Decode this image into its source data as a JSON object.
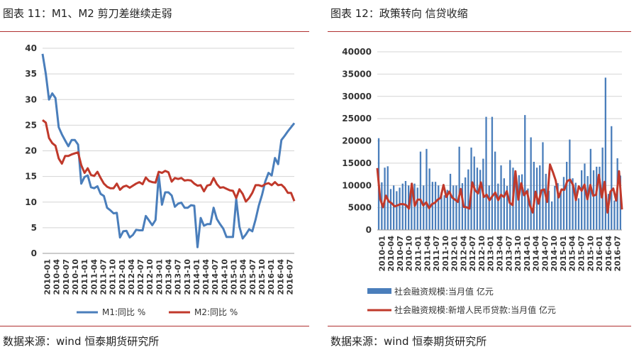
{
  "left": {
    "title": "图表 11：M1、M2 剪刀差继续走弱",
    "source": "数据来源：wind   恒泰期货研究所"
  },
  "right": {
    "title": "图表 12：政策转向 信贷收缩",
    "source": "数据来源：wind   恒泰期货研究所"
  },
  "chart_data": [
    {
      "type": "line",
      "title": "",
      "ylim": [
        0,
        40
      ],
      "yticks": [
        0,
        5,
        10,
        15,
        20,
        25,
        30,
        35,
        40
      ],
      "grid": true,
      "legend": "bottom",
      "x_start": "2010-01",
      "x_labels": [
        "2010-01",
        "2010-04",
        "2010-07",
        "2010-10",
        "2011-01",
        "2011-04",
        "2011-07",
        "2011-10",
        "2012-01",
        "2012-04",
        "2012-07",
        "2012-10",
        "2013-01",
        "2013-04",
        "2013-07",
        "2013-10",
        "2014-01",
        "2014-04",
        "2014-07",
        "2014-10",
        "2015-01",
        "2015-04",
        "2015-07",
        "2015-10",
        "2016-01",
        "2016-04",
        "2016-07"
      ],
      "series": [
        {
          "name": "M1:同比 %",
          "color": "#4a7ebb",
          "values": [
            38.9,
            35.0,
            30.0,
            31.2,
            30.3,
            24.6,
            23.2,
            22.0,
            20.9,
            22.1,
            22.1,
            21.2,
            13.6,
            14.9,
            15.2,
            12.9,
            12.7,
            13.1,
            11.6,
            11.2,
            8.9,
            8.4,
            7.8,
            7.9,
            3.1,
            4.3,
            4.4,
            3.1,
            3.6,
            4.6,
            4.5,
            4.5,
            7.3,
            6.4,
            5.5,
            6.5,
            15.3,
            9.5,
            11.9,
            11.9,
            11.3,
            9.1,
            9.7,
            9.9,
            8.9,
            8.9,
            9.4,
            9.3,
            1.2,
            6.9,
            5.4,
            5.7,
            5.7,
            8.9,
            6.7,
            5.7,
            4.8,
            3.2,
            3.2,
            3.2,
            10.6,
            5.2,
            2.9,
            3.7,
            4.7,
            4.3,
            6.6,
            9.3,
            11.4,
            14.0,
            15.7,
            15.2,
            18.6,
            17.4,
            22.1,
            22.9,
            23.8,
            24.6,
            25.4
          ],
          "labels_hidden_break": null
        },
        {
          "name": "M2:同比 %",
          "color": "#c0392b",
          "values": [
            26.0,
            25.5,
            22.5,
            21.5,
            21.0,
            18.5,
            17.5,
            19.0,
            19.0,
            19.3,
            19.5,
            19.7,
            17.2,
            15.7,
            16.6,
            15.3,
            15.1,
            15.9,
            14.7,
            13.6,
            13.0,
            12.7,
            12.7,
            13.6,
            12.4,
            13.0,
            13.2,
            12.8,
            13.2,
            13.6,
            13.9,
            13.5,
            14.8,
            14.1,
            13.9,
            13.8,
            15.9,
            15.7,
            16.1,
            15.8,
            14.0,
            14.7,
            14.5,
            14.7,
            14.2,
            14.3,
            14.2,
            13.6,
            13.2,
            13.3,
            12.1,
            13.2,
            13.4,
            14.7,
            13.5,
            12.8,
            12.9,
            12.6,
            12.3,
            12.2,
            10.8,
            12.5,
            11.6,
            10.1,
            10.8,
            11.8,
            13.3,
            13.3,
            13.1,
            13.5,
            13.7,
            13.3,
            13.9,
            13.3,
            13.4,
            12.8,
            11.8,
            11.8,
            10.2
          ]
        }
      ]
    },
    {
      "type": "bar",
      "title": "",
      "ylim": [
        0,
        40000
      ],
      "yticks": [
        0,
        5000,
        10000,
        15000,
        20000,
        25000,
        30000,
        35000,
        40000
      ],
      "grid": true,
      "legend": "bottom",
      "x_labels": [
        "2010-01",
        "2010-04",
        "2010-07",
        "2010-10",
        "2011-01",
        "2011-04",
        "2011-07",
        "2011-10",
        "2012-01",
        "2012-04",
        "2012-07",
        "2012-10",
        "2013-01",
        "2013-04",
        "2013-07",
        "2013-10",
        "2014-01",
        "2014-04",
        "2014-07",
        "2014-10",
        "2015-01",
        "2015-04",
        "2015-07",
        "2015-10",
        "2016-01",
        "2016-04",
        "2016-07"
      ],
      "series": [
        {
          "name": "社会融资规模:当月值  亿元",
          "color": "#4a7ebb",
          "kind": "bar",
          "values": [
            20600,
            10700,
            14000,
            14300,
            9200,
            10000,
            8700,
            9500,
            10400,
            11000,
            10000,
            10500,
            10400,
            9500,
            17600,
            10000,
            18200,
            13800,
            10800,
            10800,
            10000,
            8500,
            7800,
            9000,
            12600,
            10000,
            10000,
            18700,
            10500,
            11800,
            13600,
            18500,
            16500,
            14000,
            13500,
            16000,
            25400,
            10000,
            25400,
            17600,
            10400,
            14500,
            11600,
            9900,
            15700,
            14000,
            11200,
            12300,
            12500,
            25800,
            9300,
            20800,
            15300,
            14000,
            14500,
            19700,
            12600,
            8800,
            6400,
            9900,
            10500,
            8400,
            11900,
            15300,
            20300,
            11600,
            10600,
            7100,
            13400,
            14900,
            12100,
            18200,
            13400,
            14200,
            14200,
            18500,
            34200,
            8100,
            23300,
            6600,
            16100,
            12200
          ],
          "note": "values approximated from bar heights"
        },
        {
          "name": "社会融资规模:新增人民币贷款:当月值  亿元",
          "color": "#c0392b",
          "kind": "line",
          "values": [
            13900,
            7000,
            5100,
            7700,
            6400,
            6000,
            5300,
            5500,
            5800,
            5800,
            5600,
            4800,
            10400,
            5400,
            6800,
            6800,
            5500,
            6200,
            4900,
            5800,
            6100,
            6800,
            7200,
            10100,
            7400,
            8600,
            7300,
            6800,
            6300,
            9200,
            5200,
            5100,
            4800,
            10700,
            8900,
            8200,
            10700,
            7400,
            7900,
            6700,
            7600,
            8400,
            6700,
            7900,
            7400,
            8700,
            6100,
            5600,
            13200,
            6800,
            10500,
            7800,
            8700,
            5600,
            3900,
            8600,
            5900,
            8900,
            9100,
            6300,
            14700,
            13000,
            11100,
            7300,
            9100,
            9000,
            11000,
            11300,
            10100,
            6700,
            9800,
            8800,
            10200,
            6900,
            10100,
            7700,
            7900,
            12400,
            7300,
            10800,
            3900,
            8600,
            9300,
            6600,
            13200,
            4600
          ]
        }
      ]
    }
  ],
  "watermark": "恒泰"
}
